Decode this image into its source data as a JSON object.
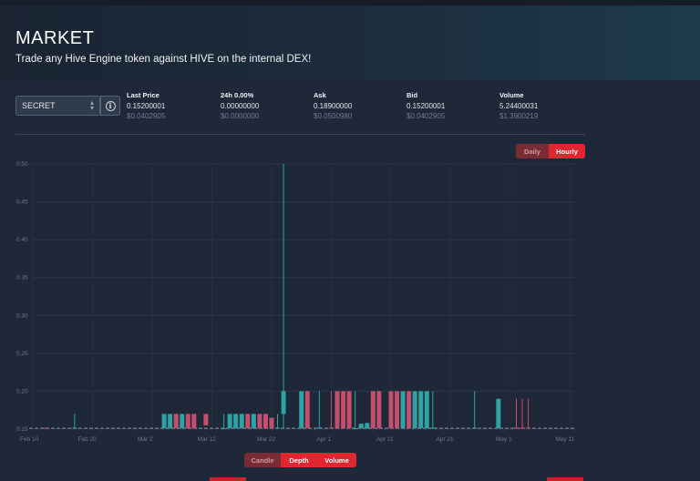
{
  "header": {
    "title": "MARKET",
    "subtitle": "Trade any Hive Engine token against HIVE on the internal DEX!"
  },
  "token_select": {
    "value": "SECRET"
  },
  "stats": {
    "last_price": {
      "label": "Last Price",
      "value": "0.15200001",
      "usd": "$0.0402905"
    },
    "change_24h": {
      "label": "24h 0.00%",
      "value": "0.00000000",
      "usd": "$0.0000000"
    },
    "ask": {
      "label": "Ask",
      "value": "0.18900000",
      "usd": "$0.0500980"
    },
    "bid": {
      "label": "Bid",
      "value": "0.15200001",
      "usd": "$0.0402905"
    },
    "volume": {
      "label": "Volume",
      "value": "5.24400031",
      "usd": "$1.3900219"
    }
  },
  "interval_toggle": {
    "options": [
      "Daily",
      "Hourly"
    ],
    "active": "Hourly"
  },
  "view_toggle": {
    "options": [
      "Candle",
      "Depth",
      "Volume"
    ],
    "active": [
      "Depth",
      "Volume"
    ]
  },
  "colors": {
    "up": "#2fa3a3",
    "down": "#c34f6e",
    "accent": "#e0262f"
  },
  "chart_data": {
    "type": "candlestick",
    "y_ticks": [
      "0.15",
      "0.20",
      "0.25",
      "0.30",
      "0.35",
      "0.40",
      "0.45",
      "0.50"
    ],
    "ylim": [
      0.15,
      0.5
    ],
    "x_ticks": [
      "Feb 10",
      "Feb 20",
      "Mar 2",
      "Mar 12",
      "Mar 22",
      "Apr 1",
      "Apr 11",
      "Apr 21",
      "May 1",
      "May 11"
    ],
    "xlim": [
      "2024-02-10",
      "2024-05-11"
    ],
    "grid": true,
    "candles": [
      {
        "date": "2024-02-12",
        "open": 0.152,
        "high": 0.152,
        "low": 0.151,
        "close": 0.151
      },
      {
        "date": "2024-02-17",
        "open": 0.152,
        "high": 0.17,
        "low": 0.152,
        "close": 0.152
      },
      {
        "date": "2024-03-03",
        "open": 0.151,
        "high": 0.17,
        "low": 0.151,
        "close": 0.17
      },
      {
        "date": "2024-03-04",
        "open": 0.151,
        "high": 0.17,
        "low": 0.151,
        "close": 0.17
      },
      {
        "date": "2024-03-05",
        "open": 0.17,
        "high": 0.17,
        "low": 0.151,
        "close": 0.151
      },
      {
        "date": "2024-03-06",
        "open": 0.151,
        "high": 0.17,
        "low": 0.151,
        "close": 0.17
      },
      {
        "date": "2024-03-07",
        "open": 0.17,
        "high": 0.17,
        "low": 0.151,
        "close": 0.151
      },
      {
        "date": "2024-03-08",
        "open": 0.17,
        "high": 0.17,
        "low": 0.151,
        "close": 0.151
      },
      {
        "date": "2024-03-10",
        "open": 0.17,
        "high": 0.17,
        "low": 0.155,
        "close": 0.155
      },
      {
        "date": "2024-03-13",
        "open": 0.151,
        "high": 0.17,
        "low": 0.151,
        "close": 0.151
      },
      {
        "date": "2024-03-14",
        "open": 0.151,
        "high": 0.17,
        "low": 0.151,
        "close": 0.17
      },
      {
        "date": "2024-03-15",
        "open": 0.151,
        "high": 0.17,
        "low": 0.151,
        "close": 0.17
      },
      {
        "date": "2024-03-16",
        "open": 0.151,
        "high": 0.17,
        "low": 0.151,
        "close": 0.17
      },
      {
        "date": "2024-03-17",
        "open": 0.17,
        "high": 0.17,
        "low": 0.151,
        "close": 0.151
      },
      {
        "date": "2024-03-18",
        "open": 0.151,
        "high": 0.17,
        "low": 0.151,
        "close": 0.17
      },
      {
        "date": "2024-03-19",
        "open": 0.17,
        "high": 0.17,
        "low": 0.151,
        "close": 0.151
      },
      {
        "date": "2024-03-20",
        "open": 0.17,
        "high": 0.17,
        "low": 0.151,
        "close": 0.151
      },
      {
        "date": "2024-03-21",
        "open": 0.165,
        "high": 0.165,
        "low": 0.151,
        "close": 0.151
      },
      {
        "date": "2024-03-22",
        "open": 0.152,
        "high": 0.17,
        "low": 0.151,
        "close": 0.152
      },
      {
        "date": "2024-03-23",
        "open": 0.17,
        "high": 0.5,
        "low": 0.151,
        "close": 0.2
      },
      {
        "date": "2024-03-26",
        "open": 0.151,
        "high": 0.2,
        "low": 0.151,
        "close": 0.2
      },
      {
        "date": "2024-03-27",
        "open": 0.2,
        "high": 0.2,
        "low": 0.151,
        "close": 0.151
      },
      {
        "date": "2024-03-29",
        "open": 0.151,
        "high": 0.2,
        "low": 0.151,
        "close": 0.152
      },
      {
        "date": "2024-03-31",
        "open": 0.152,
        "high": 0.2,
        "low": 0.151,
        "close": 0.151
      },
      {
        "date": "2024-04-01",
        "open": 0.2,
        "high": 0.2,
        "low": 0.151,
        "close": 0.151
      },
      {
        "date": "2024-04-02",
        "open": 0.2,
        "high": 0.2,
        "low": 0.151,
        "close": 0.151
      },
      {
        "date": "2024-04-03",
        "open": 0.2,
        "high": 0.2,
        "low": 0.151,
        "close": 0.151
      },
      {
        "date": "2024-04-04",
        "open": 0.151,
        "high": 0.2,
        "low": 0.151,
        "close": 0.151
      },
      {
        "date": "2024-04-05",
        "open": 0.151,
        "high": 0.157,
        "low": 0.151,
        "close": 0.157
      },
      {
        "date": "2024-04-06",
        "open": 0.151,
        "high": 0.158,
        "low": 0.151,
        "close": 0.158
      },
      {
        "date": "2024-04-07",
        "open": 0.2,
        "high": 0.2,
        "low": 0.151,
        "close": 0.151
      },
      {
        "date": "2024-04-08",
        "open": 0.2,
        "high": 0.2,
        "low": 0.151,
        "close": 0.151
      },
      {
        "date": "2024-04-10",
        "open": 0.2,
        "high": 0.2,
        "low": 0.151,
        "close": 0.151
      },
      {
        "date": "2024-04-11",
        "open": 0.2,
        "high": 0.2,
        "low": 0.151,
        "close": 0.151
      },
      {
        "date": "2024-04-12",
        "open": 0.151,
        "high": 0.2,
        "low": 0.151,
        "close": 0.2
      },
      {
        "date": "2024-04-13",
        "open": 0.2,
        "high": 0.2,
        "low": 0.151,
        "close": 0.151
      },
      {
        "date": "2024-04-14",
        "open": 0.151,
        "high": 0.2,
        "low": 0.151,
        "close": 0.2
      },
      {
        "date": "2024-04-15",
        "open": 0.151,
        "high": 0.2,
        "low": 0.151,
        "close": 0.2
      },
      {
        "date": "2024-04-16",
        "open": 0.151,
        "high": 0.2,
        "low": 0.151,
        "close": 0.2
      },
      {
        "date": "2024-04-17",
        "open": 0.151,
        "high": 0.2,
        "low": 0.151,
        "close": 0.152
      },
      {
        "date": "2024-04-24",
        "open": 0.151,
        "high": 0.2,
        "low": 0.151,
        "close": 0.152
      },
      {
        "date": "2024-04-28",
        "open": 0.151,
        "high": 0.19,
        "low": 0.151,
        "close": 0.19
      },
      {
        "date": "2024-05-01",
        "open": 0.152,
        "high": 0.19,
        "low": 0.151,
        "close": 0.151
      },
      {
        "date": "2024-05-02",
        "open": 0.152,
        "high": 0.19,
        "low": 0.151,
        "close": 0.151
      },
      {
        "date": "2024-05-03",
        "open": 0.152,
        "high": 0.19,
        "low": 0.151,
        "close": 0.151
      }
    ]
  }
}
